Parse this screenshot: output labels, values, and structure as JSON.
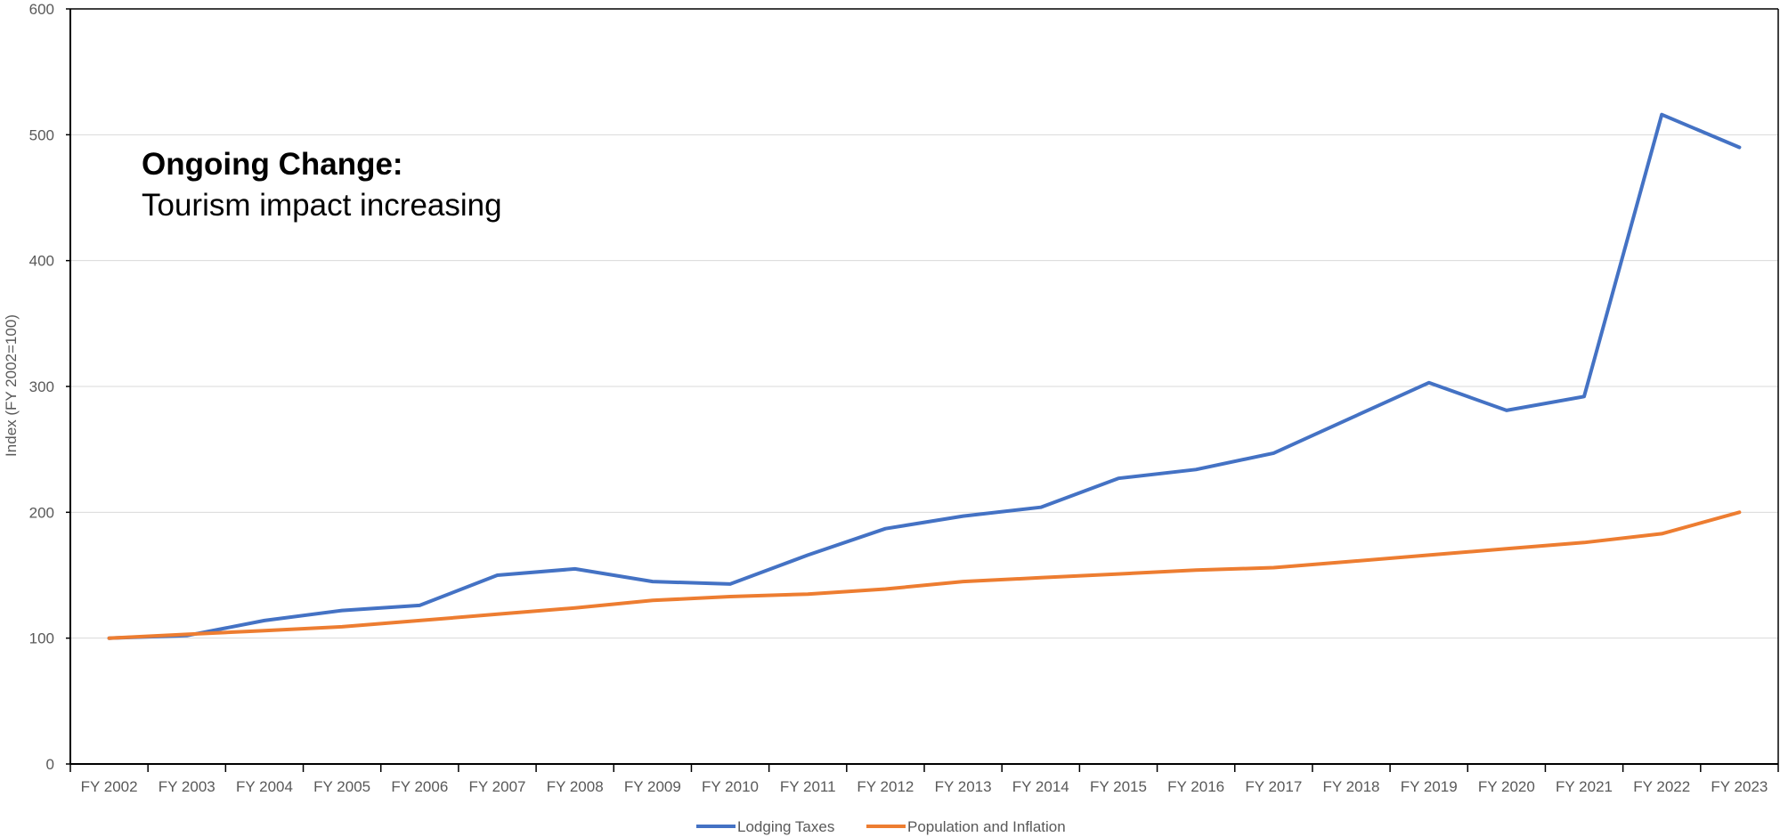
{
  "chart_data": {
    "type": "line",
    "ylabel": "Index (FY 2002=100)",
    "ylim": [
      0,
      600
    ],
    "yticks": [
      0,
      100,
      200,
      300,
      400,
      500,
      600
    ],
    "grid": true,
    "legend_position": "bottom",
    "categories": [
      "FY 2002",
      "FY 2003",
      "FY 2004",
      "FY 2005",
      "FY 2006",
      "FY 2007",
      "FY 2008",
      "FY 2009",
      "FY 2010",
      "FY 2011",
      "FY 2012",
      "FY 2013",
      "FY 2014",
      "FY 2015",
      "FY 2016",
      "FY 2017",
      "FY 2018",
      "FY 2019",
      "FY 2020",
      "FY 2021",
      "FY 2022",
      "FY 2023"
    ],
    "series": [
      {
        "name": "Lodging Taxes",
        "color": "#4472C4",
        "values": [
          100,
          102,
          114,
          122,
          126,
          150,
          155,
          145,
          143,
          166,
          187,
          197,
          204,
          227,
          234,
          247,
          275,
          303,
          281,
          292,
          516,
          490
        ]
      },
      {
        "name": "Population and Inflation",
        "color": "#ED7D31",
        "values": [
          100,
          103,
          106,
          109,
          114,
          119,
          124,
          130,
          133,
          135,
          139,
          145,
          148,
          151,
          154,
          156,
          161,
          166,
          171,
          176,
          183,
          200
        ]
      }
    ],
    "annotation": {
      "heading": "Ongoing Change:",
      "text": "Tourism impact increasing"
    }
  }
}
